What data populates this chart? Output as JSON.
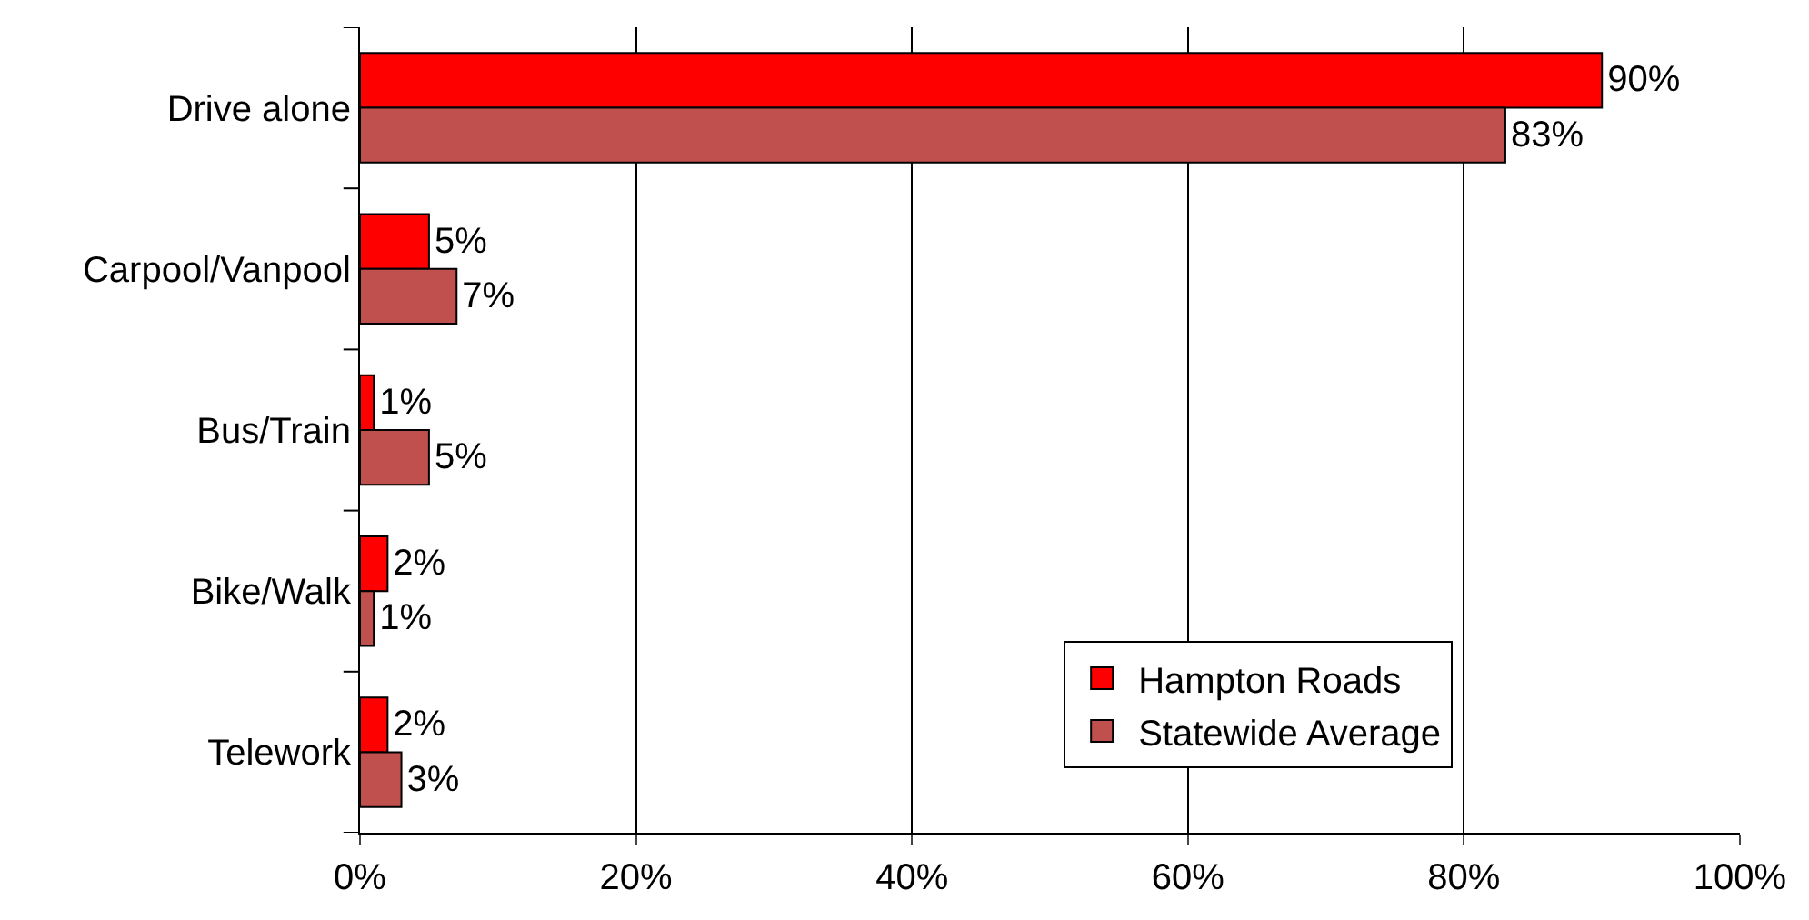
{
  "chart_data": {
    "type": "bar",
    "orientation": "horizontal",
    "categories": [
      "Drive alone",
      "Carpool/Vanpool",
      "Bus/Train",
      "Bike/Walk",
      "Telework"
    ],
    "series": [
      {
        "name": "Hampton Roads",
        "color": "#ff0000",
        "values": [
          90,
          5,
          1,
          2,
          2
        ],
        "value_labels": [
          "90%",
          "5%",
          "1%",
          "2%",
          "2%"
        ]
      },
      {
        "name": "Statewide Average",
        "color": "#c0504d",
        "values": [
          83,
          7,
          5,
          1,
          3
        ],
        "value_labels": [
          "83%",
          "7%",
          "5%",
          "1%",
          "3%"
        ]
      }
    ],
    "xlim": [
      0,
      100
    ],
    "xticks": [
      {
        "value": 0,
        "label": "0%"
      },
      {
        "value": 20,
        "label": "20%"
      },
      {
        "value": 40,
        "label": "40%"
      },
      {
        "value": 60,
        "label": "60%"
      },
      {
        "value": 80,
        "label": "80%"
      },
      {
        "value": 100,
        "label": "100%"
      }
    ],
    "grid": "x",
    "legend": "bottom right"
  }
}
